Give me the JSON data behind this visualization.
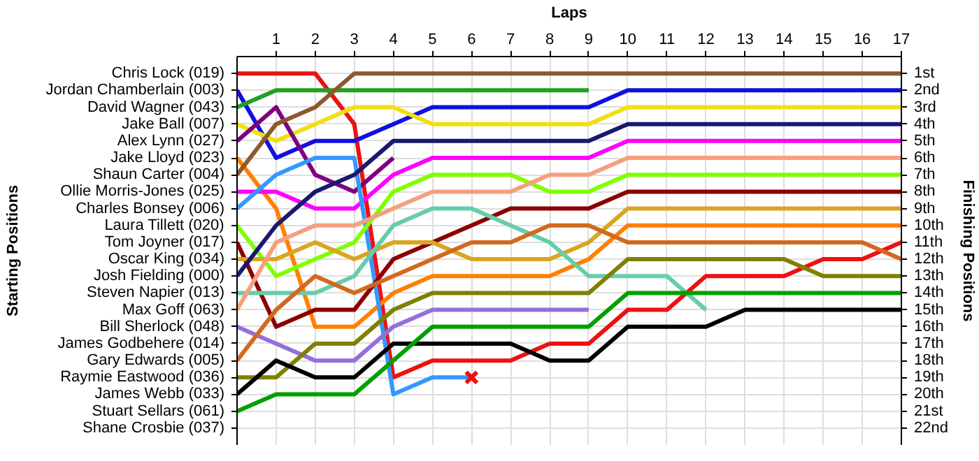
{
  "chart_data": {
    "type": "line",
    "xlabel": "Laps",
    "ylabel": "Finishing Positions",
    "x": [
      0,
      1,
      2,
      3,
      4,
      5,
      6,
      7,
      8,
      9,
      10,
      11,
      12,
      13,
      14,
      15,
      16,
      17
    ],
    "xlim": [
      0,
      17
    ],
    "xticks": [
      1,
      2,
      3,
      4,
      5,
      6,
      7,
      8,
      9,
      10,
      11,
      12,
      13,
      14,
      15,
      16,
      17
    ],
    "ylim": [
      23,
      0
    ],
    "yticks": [
      {
        "value": 1,
        "label": "1st"
      },
      {
        "value": 2,
        "label": "2nd"
      },
      {
        "value": 3,
        "label": "3rd"
      },
      {
        "value": 4,
        "label": "4th"
      },
      {
        "value": 5,
        "label": "5th"
      },
      {
        "value": 6,
        "label": "6th"
      },
      {
        "value": 7,
        "label": "7th"
      },
      {
        "value": 8,
        "label": "8th"
      },
      {
        "value": 9,
        "label": "9th"
      },
      {
        "value": 10,
        "label": "10th"
      },
      {
        "value": 11,
        "label": "11th"
      },
      {
        "value": 12,
        "label": "12th"
      },
      {
        "value": 13,
        "label": "13th"
      },
      {
        "value": 14,
        "label": "14th"
      },
      {
        "value": 15,
        "label": "15th"
      },
      {
        "value": 16,
        "label": "16th"
      },
      {
        "value": 17,
        "label": "17th"
      },
      {
        "value": 18,
        "label": "18th"
      },
      {
        "value": 19,
        "label": "19th"
      },
      {
        "value": 20,
        "label": "20th"
      },
      {
        "value": 21,
        "label": "21st"
      },
      {
        "value": 22,
        "label": "22nd"
      }
    ],
    "annotations": [
      "Starting Positions",
      "Chris Lock (019)",
      "Jordan Chamberlain (003)",
      "David Wagner (043)",
      "Jake Ball (007)",
      "Alex Lynn (027)",
      "Jake Lloyd (023)",
      "Shaun Carter (004)",
      "Ollie Morris-Jones (025)",
      "Charles Bonsey (006)",
      "Laura Tillett (020)",
      "Tom Joyner (017)",
      "Oscar King (034)",
      "Josh Fielding (000)",
      "Steven Napier (013)",
      "Max Goff (063)",
      "Bill Sherlock (048)",
      "James Godbehere (014)",
      "Gary Edwards (005)",
      "Raymie Eastwood (036)",
      "James Webb (033)",
      "Stuart Sellars (061)",
      "Shane Crosbie (037)"
    ],
    "grid": true,
    "series": [
      {
        "color": "#ee1111",
        "values": [
          1,
          1,
          1,
          4,
          19,
          18,
          18,
          18,
          17,
          17,
          15,
          15,
          13,
          13,
          13,
          12,
          12,
          11
        ]
      },
      {
        "color": "#1010e0",
        "values": [
          2,
          6,
          5,
          5,
          4,
          3,
          3,
          3,
          3,
          3,
          2,
          2,
          2,
          2,
          2,
          2,
          2,
          2
        ]
      },
      {
        "color": "#22a022",
        "values": [
          3,
          2,
          2,
          2,
          2,
          2,
          2,
          2,
          2,
          2,
          null,
          null,
          null,
          null,
          null,
          null,
          null,
          null
        ]
      },
      {
        "color": "#f0e010",
        "values": [
          4,
          5,
          4,
          3,
          3,
          4,
          4,
          4,
          4,
          4,
          3,
          3,
          3,
          3,
          3,
          3,
          3,
          3
        ]
      },
      {
        "color": "#800080",
        "values": [
          5,
          3,
          7,
          8,
          6,
          null,
          null,
          null,
          null,
          null,
          null,
          null,
          null,
          null,
          null,
          null,
          null,
          null
        ]
      },
      {
        "color": "#ff8000",
        "values": [
          6,
          9,
          16,
          16,
          14,
          13,
          13,
          13,
          13,
          12,
          10,
          10,
          10,
          10,
          10,
          10,
          10,
          10
        ]
      },
      {
        "color": "#8b5a2b",
        "values": [
          7,
          4,
          3,
          1,
          1,
          1,
          1,
          1,
          1,
          1,
          1,
          1,
          1,
          1,
          1,
          1,
          1,
          1
        ]
      },
      {
        "color": "#ff00ff",
        "values": [
          8,
          8,
          9,
          9,
          7,
          6,
          6,
          6,
          6,
          6,
          5,
          5,
          5,
          5,
          5,
          5,
          5,
          5
        ]
      },
      {
        "color": "#3399ff",
        "values": [
          9,
          7,
          6,
          6,
          20,
          19,
          19,
          null,
          null,
          null,
          null,
          null,
          null,
          null,
          null,
          null,
          null,
          null
        ]
      },
      {
        "color": "#80ff00",
        "values": [
          10,
          13,
          12,
          11,
          8,
          7,
          7,
          7,
          8,
          8,
          7,
          7,
          7,
          7,
          7,
          7,
          7,
          7
        ]
      },
      {
        "color": "#8b0000",
        "values": [
          11,
          16,
          15,
          15,
          12,
          11,
          10,
          9,
          9,
          9,
          8,
          8,
          8,
          8,
          8,
          8,
          8,
          8
        ]
      },
      {
        "color": "#daa520",
        "values": [
          12,
          12,
          11,
          12,
          11,
          11,
          12,
          12,
          12,
          11,
          9,
          9,
          9,
          9,
          9,
          9,
          9,
          9
        ]
      },
      {
        "color": "#191970",
        "values": [
          13,
          10,
          8,
          7,
          5,
          5,
          5,
          5,
          5,
          5,
          4,
          4,
          4,
          4,
          4,
          4,
          4,
          4
        ]
      },
      {
        "color": "#66cdaa",
        "values": [
          14,
          14,
          14,
          13,
          10,
          9,
          9,
          10,
          11,
          13,
          13,
          13,
          15,
          null,
          null,
          null,
          null,
          null
        ]
      },
      {
        "color": "#f4a080",
        "values": [
          15,
          11,
          10,
          10,
          9,
          8,
          8,
          8,
          7,
          7,
          6,
          6,
          6,
          6,
          6,
          6,
          6,
          6
        ]
      },
      {
        "color": "#9370db",
        "values": [
          16,
          17,
          18,
          18,
          16,
          15,
          15,
          15,
          15,
          15,
          null,
          null,
          null,
          null,
          null,
          null,
          null,
          null
        ]
      },
      {
        "color": "#d2691e",
        "values": [
          18,
          15,
          13,
          14,
          13,
          12,
          11,
          11,
          10,
          10,
          11,
          11,
          11,
          11,
          11,
          11,
          11,
          12
        ]
      },
      {
        "color": "#808000",
        "values": [
          19,
          19,
          17,
          17,
          15,
          14,
          14,
          14,
          14,
          14,
          12,
          12,
          12,
          12,
          12,
          13,
          13,
          13
        ]
      },
      {
        "color": "#000000",
        "values": [
          20,
          18,
          19,
          19,
          17,
          17,
          17,
          17,
          18,
          18,
          16,
          16,
          16,
          15,
          15,
          15,
          15,
          15
        ]
      },
      {
        "color": "#00a000",
        "values": [
          21,
          20,
          20,
          20,
          18,
          16,
          16,
          16,
          16,
          16,
          14,
          14,
          14,
          14,
          14,
          14,
          14,
          14
        ]
      },
      {
        "type": "scatter",
        "marker": "cross",
        "color": "#ee1111",
        "values": [
          null,
          null,
          null,
          null,
          null,
          null,
          19,
          null,
          null,
          null,
          null,
          null,
          null,
          null,
          null,
          null,
          null,
          null
        ]
      }
    ]
  }
}
